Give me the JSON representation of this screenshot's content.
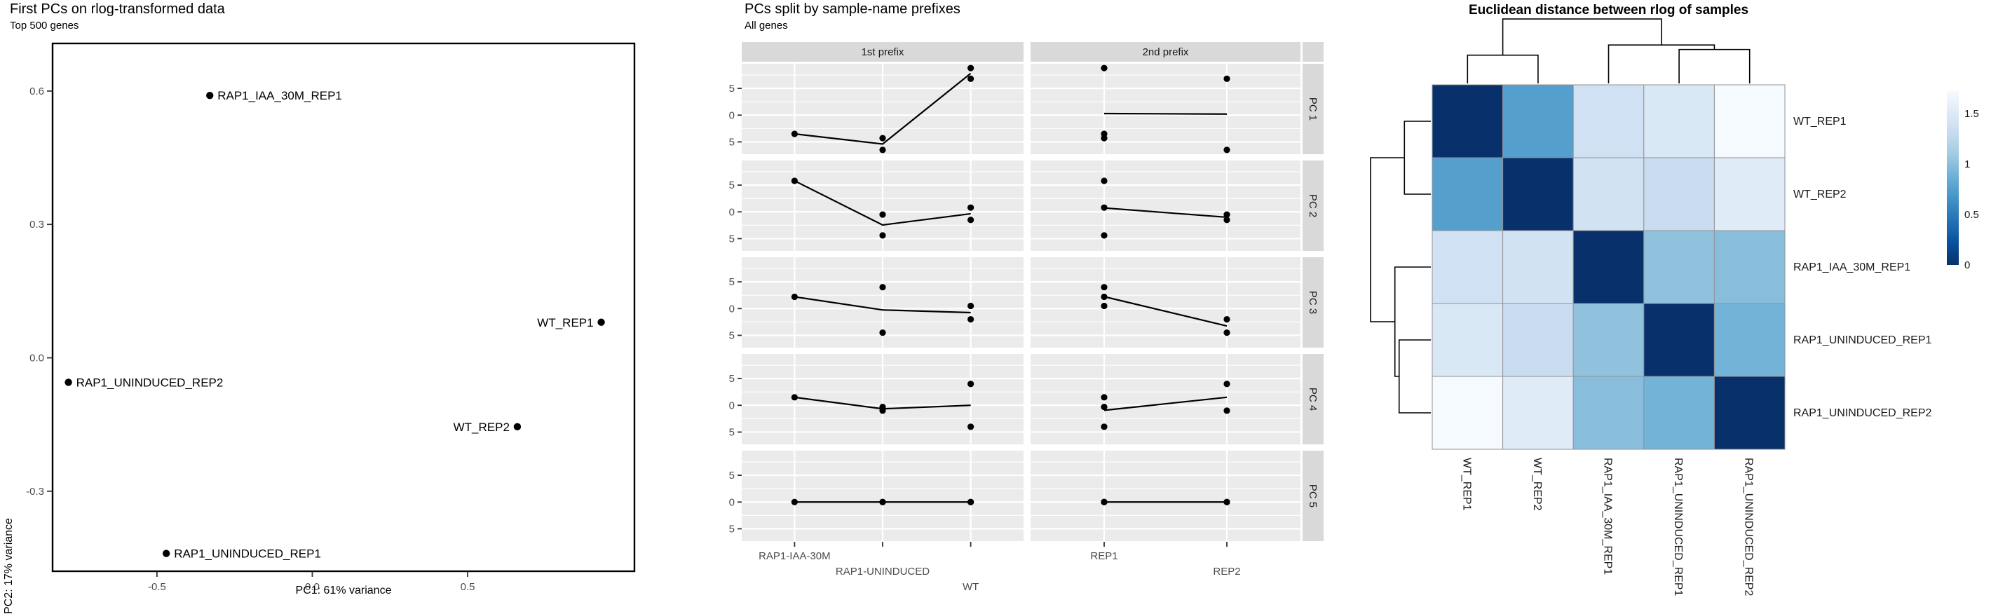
{
  "page": {
    "background": "#ffffff"
  },
  "styles": {
    "panel_bg": "#EBEBEB",
    "strip_bg": "#D9D9D9",
    "grid_color": "#FFFFFF",
    "tick_text_color": "#4D4D4D",
    "text_color": "#000000",
    "point_color": "#000000",
    "line_color": "#000000",
    "panel_border": "#000000",
    "heatmap_border": "#919196",
    "dendrogram_color": "#000000",
    "accent_dark_blue": "#08306B"
  },
  "chart_data": [
    {
      "id": "pca_scatter",
      "type": "scatter",
      "title": "First PCs on rlog-transformed data",
      "subtitle": "Top 500 genes",
      "xlabel": "PC1: 61% variance",
      "ylabel": "PC2: 17% variance",
      "xlim": [
        -0.836,
        1.037
      ],
      "ylim": [
        -0.48,
        0.707
      ],
      "xticks": [
        -0.5,
        0.0,
        0.5
      ],
      "yticks": [
        0.6,
        0.3,
        0.0,
        -0.3
      ],
      "grid": false,
      "points": [
        {
          "label": "RAP1_IAA_30M_REP1",
          "x": -0.33,
          "y": 0.59,
          "label_side": "right"
        },
        {
          "label": "WT_REP1",
          "x": 0.93,
          "y": 0.08,
          "label_side": "left"
        },
        {
          "label": "RAP1_UNINDUCED_REP2",
          "x": -0.785,
          "y": -0.055,
          "label_side": "right"
        },
        {
          "label": "WT_REP2",
          "x": 0.66,
          "y": -0.155,
          "label_side": "left"
        },
        {
          "label": "RAP1_UNINDUCED_REP1",
          "x": -0.47,
          "y": -0.44,
          "label_side": "right"
        }
      ]
    },
    {
      "id": "pc_facets",
      "type": "line",
      "title": "PCs split by sample-name prefixes",
      "subtitle": "All genes",
      "col_facets": [
        {
          "label": "1st prefix",
          "categories": [
            "RAP1-IAA-30M",
            "RAP1-UNINDUCED",
            "WT"
          ]
        },
        {
          "label": "2nd prefix",
          "categories": [
            "REP1",
            "REP2"
          ]
        }
      ],
      "row_facets": [
        "PC 1",
        "PC 2",
        "PC 3",
        "PC 4",
        "PC 5"
      ],
      "ylim": [
        -0.73,
        0.96
      ],
      "yticks": [
        0.5,
        0.0,
        -0.5
      ],
      "yminor": [
        0.75,
        0.25,
        -0.25
      ],
      "rows": [
        {
          "pc": "PC 1",
          "panels": [
            {
              "points": [
                [
                  1,
                  -0.35
                ],
                [
                  2,
                  -0.43
                ],
                [
                  2,
                  -0.65
                ],
                [
                  3,
                  0.88
                ],
                [
                  3,
                  0.68
                ]
              ],
              "line": [
                -0.35,
                -0.54,
                0.78
              ]
            },
            {
              "points": [
                [
                  1,
                  0.88
                ],
                [
                  1,
                  -0.35
                ],
                [
                  1,
                  -0.43
                ],
                [
                  2,
                  0.68
                ],
                [
                  2,
                  -0.65
                ]
              ],
              "line": [
                0.03,
                0.02
              ]
            }
          ]
        },
        {
          "pc": "PC 2",
          "panels": [
            {
              "points": [
                [
                  1,
                  0.58
                ],
                [
                  2,
                  -0.05
                ],
                [
                  2,
                  -0.44
                ],
                [
                  3,
                  0.08
                ],
                [
                  3,
                  -0.15
                ]
              ],
              "line": [
                0.58,
                -0.245,
                -0.035
              ]
            },
            {
              "points": [
                [
                  1,
                  0.58
                ],
                [
                  1,
                  -0.44
                ],
                [
                  1,
                  0.08
                ],
                [
                  2,
                  -0.05
                ],
                [
                  2,
                  -0.15
                ]
              ],
              "line": [
                0.073,
                -0.1
              ]
            }
          ]
        },
        {
          "pc": "PC 3",
          "panels": [
            {
              "points": [
                [
                  1,
                  0.22
                ],
                [
                  2,
                  0.4
                ],
                [
                  2,
                  -0.45
                ],
                [
                  3,
                  0.05
                ],
                [
                  3,
                  -0.2
                ]
              ],
              "line": [
                0.22,
                -0.025,
                -0.075
              ]
            },
            {
              "points": [
                [
                  1,
                  0.22
                ],
                [
                  1,
                  0.4
                ],
                [
                  1,
                  0.05
                ],
                [
                  2,
                  -0.45
                ],
                [
                  2,
                  -0.2
                ]
              ],
              "line": [
                0.223,
                -0.325
              ]
            }
          ]
        },
        {
          "pc": "PC 4",
          "panels": [
            {
              "points": [
                [
                  1,
                  0.15
                ],
                [
                  2,
                  -0.03
                ],
                [
                  2,
                  -0.1
                ],
                [
                  3,
                  -0.4
                ],
                [
                  3,
                  0.4
                ]
              ],
              "line": [
                0.15,
                -0.065,
                0.0
              ]
            },
            {
              "points": [
                [
                  1,
                  0.15
                ],
                [
                  1,
                  -0.03
                ],
                [
                  1,
                  -0.4
                ],
                [
                  2,
                  -0.1
                ],
                [
                  2,
                  0.4
                ]
              ],
              "line": [
                -0.093,
                0.15
              ]
            }
          ]
        },
        {
          "pc": "PC 5",
          "panels": [
            {
              "points": [
                [
                  1,
                  0
                ],
                [
                  2,
                  0
                ],
                [
                  2,
                  0
                ],
                [
                  3,
                  0
                ],
                [
                  3,
                  0
                ]
              ],
              "line": [
                0,
                0,
                0
              ]
            },
            {
              "points": [
                [
                  1,
                  0
                ],
                [
                  1,
                  0
                ],
                [
                  1,
                  0
                ],
                [
                  2,
                  0
                ],
                [
                  2,
                  0
                ]
              ],
              "line": [
                0,
                0
              ]
            }
          ]
        }
      ]
    },
    {
      "id": "distance_heatmap",
      "type": "heatmap",
      "title": "Euclidean distance between rlog of samples",
      "labels": [
        "WT_REP1",
        "WT_REP2",
        "RAP1_IAA_30M_REP1",
        "RAP1_UNINDUCED_REP1",
        "RAP1_UNINDUCED_REP2"
      ],
      "matrix": [
        [
          0.0,
          0.75,
          1.38,
          1.47,
          1.71
        ],
        [
          0.75,
          0.0,
          1.4,
          1.33,
          1.52
        ],
        [
          1.38,
          1.4,
          0.0,
          1.02,
          0.99
        ],
        [
          1.47,
          1.33,
          1.02,
          0.0,
          0.9
        ],
        [
          1.71,
          1.52,
          0.99,
          0.9,
          0.0
        ]
      ],
      "color_domain": [
        0,
        1.73
      ],
      "palette_dark_to_light": [
        "#08306b",
        "#08519c",
        "#2171b5",
        "#4292c6",
        "#6baed6",
        "#9ecae1",
        "#c6dbef",
        "#deebf7",
        "#f7fbff"
      ],
      "legend_ticks": [
        1.5,
        1,
        0.5,
        0
      ],
      "dendrogram": {
        "h": 1.71,
        "children": [
          {
            "h": 0.75,
            "children": [
              {
                "leaf": 0
              },
              {
                "leaf": 1
              }
            ]
          },
          {
            "h": 1.02,
            "children": [
              {
                "leaf": 2
              },
              {
                "h": 0.9,
                "children": [
                  {
                    "leaf": 3
                  },
                  {
                    "leaf": 4
                  }
                ]
              }
            ]
          }
        ]
      }
    }
  ]
}
